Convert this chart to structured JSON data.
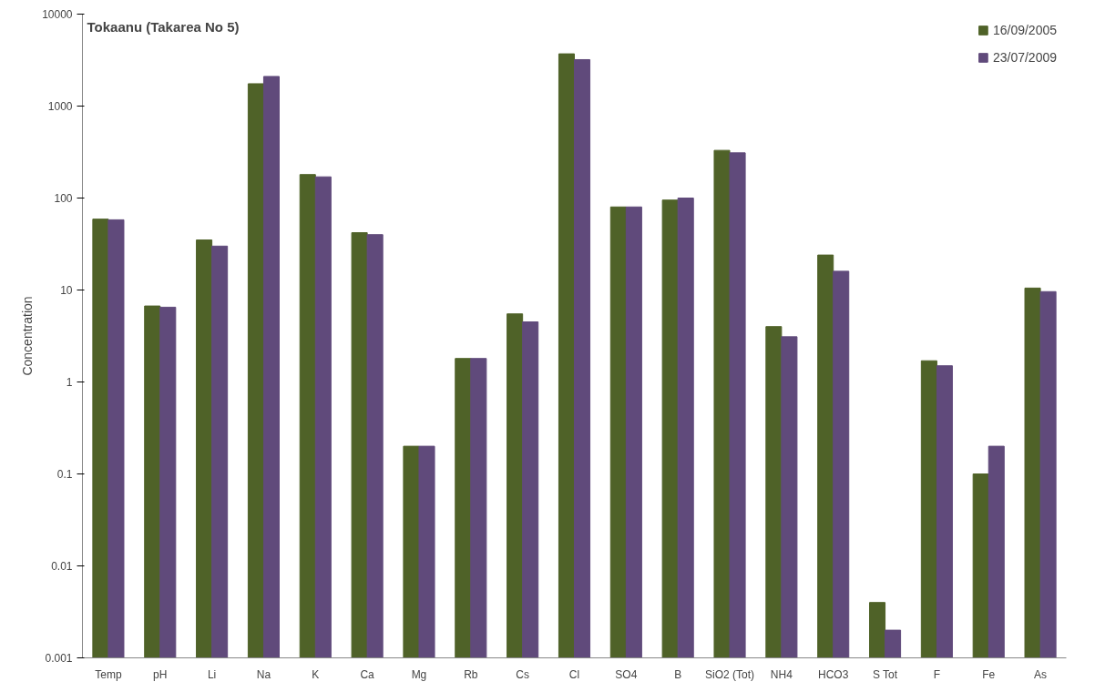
{
  "chart_data": {
    "type": "bar",
    "title": "Tokaanu (Takarea No 5)",
    "ylabel": "Concentration",
    "categories": [
      "Temp",
      "pH",
      "Li",
      "Na",
      "K",
      "Ca",
      "Mg",
      "Rb",
      "Cs",
      "Cl",
      "SO4",
      "B",
      "SiO2 (Tot)",
      "NH4",
      "HCO3",
      "S Tot",
      "F",
      "Fe",
      "As"
    ],
    "series": [
      {
        "name": "16/09/2005",
        "color": "#4f6228",
        "values": [
          59,
          6.7,
          35,
          1750,
          180,
          42,
          0.2,
          1.8,
          5.5,
          3700,
          80,
          95,
          330,
          4,
          24,
          0.004,
          1.7,
          0.1,
          10.5
        ]
      },
      {
        "name": "23/07/2009",
        "color": "#604a7b",
        "values": [
          58,
          6.5,
          30,
          2100,
          170,
          40,
          0.2,
          1.8,
          4.5,
          3200,
          80,
          100,
          310,
          3.1,
          16,
          0.002,
          1.5,
          0.2,
          9.6
        ]
      }
    ],
    "log": true,
    "ylim": [
      0.001,
      10000
    ],
    "yticks": [
      0.001,
      0.01,
      0.1,
      1,
      10,
      100,
      1000,
      10000
    ],
    "grid": false,
    "legend": "top right"
  }
}
